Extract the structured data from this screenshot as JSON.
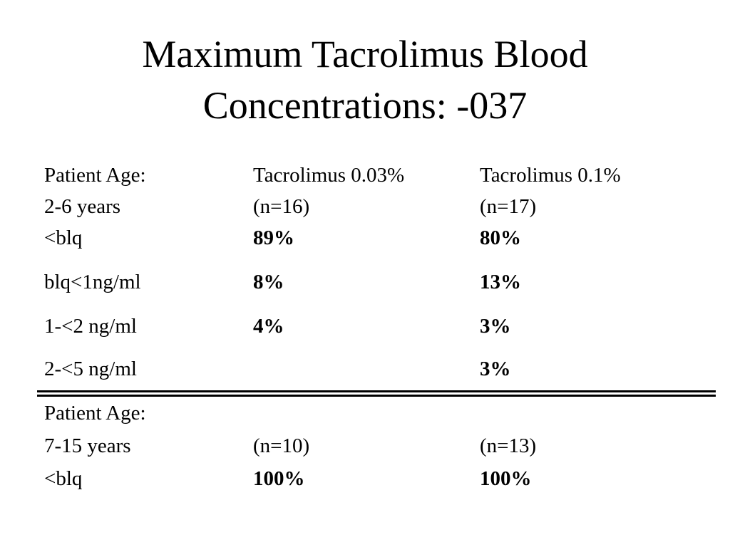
{
  "title": {
    "line1": "Maximum Tacrolimus Blood",
    "line2": "Concentrations:  -037"
  },
  "group1": {
    "label_row": {
      "col1": "Patient Age:",
      "col2": "Tacrolimus 0.03%",
      "col3": "Tacrolimus 0.1%"
    },
    "sub_row": {
      "col1": "2-6 years",
      "col2": "(n=16)",
      "col3": "(n=17)"
    },
    "rows": [
      {
        "label": "<blq",
        "v1": "89%",
        "v2": "80%"
      },
      {
        "label": "blq<1ng/ml",
        "v1": "8%",
        "v2": "13%"
      },
      {
        "label": "1-<2 ng/ml",
        "v1": "4%",
        "v2": "3%"
      },
      {
        "label": "2-<5 ng/ml",
        "v1": "",
        "v2": "3%"
      }
    ]
  },
  "group2": {
    "label_row": {
      "col1": "Patient Age:"
    },
    "sub_row": {
      "col1": "7-15 years",
      "col2": "(n=10)",
      "col3": "(n=13)"
    },
    "rows": [
      {
        "label": "<blq",
        "v1": "100%",
        "v2": "100%"
      }
    ]
  }
}
